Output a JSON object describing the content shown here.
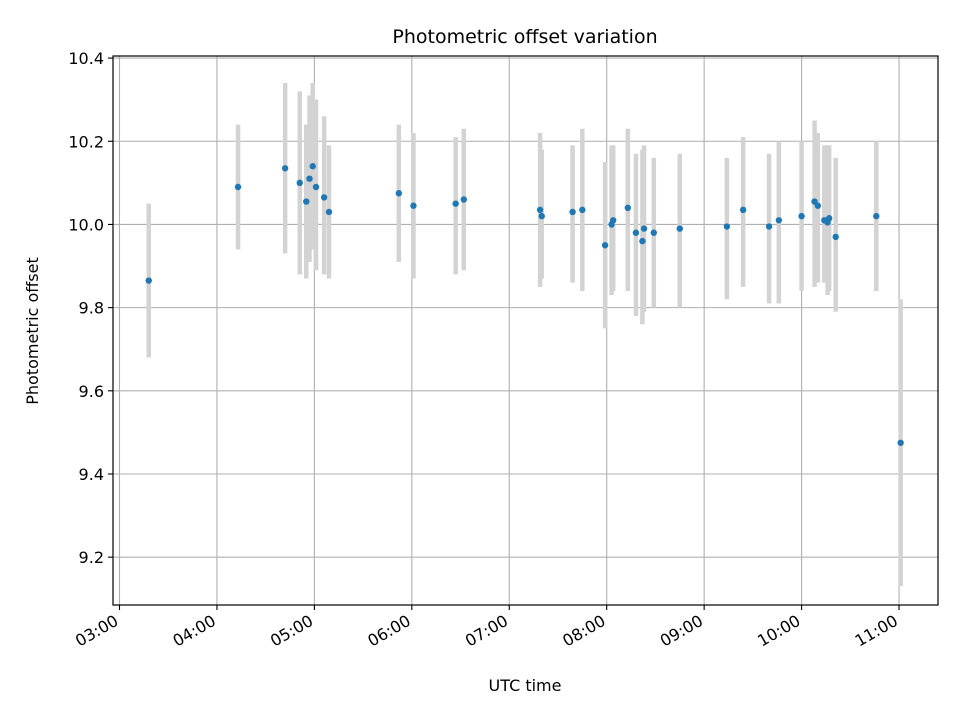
{
  "chart_data": {
    "type": "scatter",
    "title": "Photometric offset variation",
    "xlabel": "UTC time",
    "ylabel": "Photometric offset",
    "xlim": [
      "02:56",
      "11:24"
    ],
    "ylim": [
      9.085,
      10.405
    ],
    "grid": true,
    "x_ticks": [
      "03:00",
      "04:00",
      "05:00",
      "06:00",
      "07:00",
      "08:00",
      "09:00",
      "10:00",
      "11:00"
    ],
    "y_ticks": [
      "9.2",
      "9.4",
      "9.6",
      "9.8",
      "10.0",
      "10.2",
      "10.4"
    ],
    "colors": {
      "point": "#1f77b4",
      "errorbar": "#d3d3d3",
      "grid": "#b0b0b0"
    },
    "series": [
      {
        "points": [
          {
            "x": "03:18",
            "y": 9.865,
            "low": 9.68,
            "high": 10.05
          },
          {
            "x": "04:13",
            "y": 10.09,
            "low": 9.94,
            "high": 10.24
          },
          {
            "x": "04:42",
            "y": 10.135,
            "low": 9.93,
            "high": 10.34
          },
          {
            "x": "04:51",
            "y": 10.1,
            "low": 9.88,
            "high": 10.32
          },
          {
            "x": "04:55",
            "y": 10.055,
            "low": 9.87,
            "high": 10.24
          },
          {
            "x": "04:57",
            "y": 10.11,
            "low": 9.91,
            "high": 10.31
          },
          {
            "x": "04:59",
            "y": 10.14,
            "low": 9.94,
            "high": 10.34
          },
          {
            "x": "05:01",
            "y": 10.09,
            "low": 9.89,
            "high": 10.3
          },
          {
            "x": "05:06",
            "y": 10.065,
            "low": 9.88,
            "high": 10.26
          },
          {
            "x": "05:09",
            "y": 10.03,
            "low": 9.87,
            "high": 10.19
          },
          {
            "x": "05:52",
            "y": 10.075,
            "low": 9.91,
            "high": 10.24
          },
          {
            "x": "06:01",
            "y": 10.045,
            "low": 9.87,
            "high": 10.22
          },
          {
            "x": "06:27",
            "y": 10.05,
            "low": 9.88,
            "high": 10.21
          },
          {
            "x": "06:32",
            "y": 10.06,
            "low": 9.89,
            "high": 10.23
          },
          {
            "x": "07:19",
            "y": 10.035,
            "low": 9.85,
            "high": 10.22
          },
          {
            "x": "07:20",
            "y": 10.02,
            "low": 9.87,
            "high": 10.18
          },
          {
            "x": "07:39",
            "y": 10.03,
            "low": 9.86,
            "high": 10.19
          },
          {
            "x": "07:45",
            "y": 10.035,
            "low": 9.84,
            "high": 10.23
          },
          {
            "x": "07:59",
            "y": 9.95,
            "low": 9.75,
            "high": 10.15
          },
          {
            "x": "08:03",
            "y": 10.0,
            "low": 9.83,
            "high": 10.19
          },
          {
            "x": "08:04",
            "y": 10.01,
            "low": 9.84,
            "high": 10.19
          },
          {
            "x": "08:13",
            "y": 10.04,
            "low": 9.84,
            "high": 10.23
          },
          {
            "x": "08:18",
            "y": 9.98,
            "low": 9.78,
            "high": 10.17
          },
          {
            "x": "08:22",
            "y": 9.96,
            "low": 9.76,
            "high": 10.18
          },
          {
            "x": "08:23",
            "y": 9.99,
            "low": 9.79,
            "high": 10.19
          },
          {
            "x": "08:29",
            "y": 9.98,
            "low": 9.8,
            "high": 10.16
          },
          {
            "x": "08:45",
            "y": 9.99,
            "low": 9.8,
            "high": 10.17
          },
          {
            "x": "09:14",
            "y": 9.995,
            "low": 9.82,
            "high": 10.16
          },
          {
            "x": "09:24",
            "y": 10.035,
            "low": 9.85,
            "high": 10.21
          },
          {
            "x": "09:40",
            "y": 9.995,
            "low": 9.81,
            "high": 10.17
          },
          {
            "x": "09:46",
            "y": 10.01,
            "low": 9.81,
            "high": 10.2
          },
          {
            "x": "10:00",
            "y": 10.02,
            "low": 9.84,
            "high": 10.2
          },
          {
            "x": "10:08",
            "y": 10.055,
            "low": 9.85,
            "high": 10.25
          },
          {
            "x": "10:10",
            "y": 10.045,
            "low": 9.86,
            "high": 10.22
          },
          {
            "x": "10:14",
            "y": 10.01,
            "low": 9.86,
            "high": 10.19
          },
          {
            "x": "10:16",
            "y": 10.005,
            "low": 9.83,
            "high": 10.19
          },
          {
            "x": "10:17",
            "y": 10.015,
            "low": 9.84,
            "high": 10.19
          },
          {
            "x": "10:21",
            "y": 9.97,
            "low": 9.79,
            "high": 10.16
          },
          {
            "x": "10:46",
            "y": 10.02,
            "low": 9.84,
            "high": 10.2
          },
          {
            "x": "11:01",
            "y": 9.475,
            "low": 9.13,
            "high": 9.82
          }
        ]
      }
    ]
  }
}
